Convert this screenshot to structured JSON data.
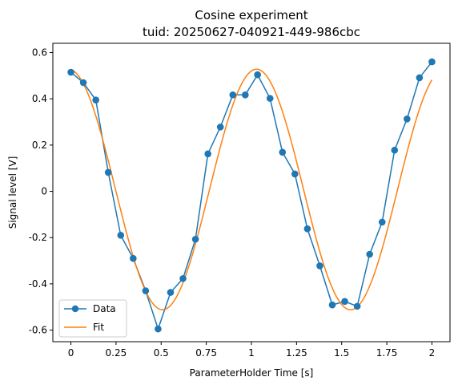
{
  "chart_data": {
    "type": "line",
    "title": "Cosine experiment",
    "subtitle": "tuid: 20250627-040921-449-986cbc",
    "xlabel": "ParameterHolder Time [s]",
    "ylabel": "Signal level [V]",
    "xlim": [
      -0.1,
      2.1
    ],
    "ylim": [
      -0.65,
      0.64
    ],
    "xticks": [
      0,
      0.25,
      0.5,
      0.75,
      1,
      1.25,
      1.5,
      1.75,
      2
    ],
    "xtick_labels": [
      "0",
      "0.25",
      "0.5",
      "0.75",
      "1",
      "1.25",
      "1.5",
      "1.75",
      "2"
    ],
    "yticks": [
      -0.6,
      -0.4,
      -0.2,
      0,
      0.2,
      0.4,
      0.6
    ],
    "ytick_labels": [
      "-0.6",
      "-0.4",
      "-0.2",
      "0",
      "0.2",
      "0.4",
      "0.6"
    ],
    "grid": false,
    "legend_position": "lower-left",
    "series": [
      {
        "name": "Data",
        "style": "line-markers",
        "color": "#1f77b4",
        "x": [
          0.0,
          0.069,
          0.138,
          0.207,
          0.276,
          0.345,
          0.414,
          0.483,
          0.552,
          0.621,
          0.69,
          0.759,
          0.828,
          0.897,
          0.966,
          1.034,
          1.103,
          1.172,
          1.241,
          1.31,
          1.379,
          1.448,
          1.517,
          1.586,
          1.655,
          1.724,
          1.793,
          1.862,
          1.931,
          2.0
        ],
        "y": [
          0.515,
          0.47,
          0.395,
          0.082,
          -0.19,
          -0.29,
          -0.43,
          -0.595,
          -0.437,
          -0.377,
          -0.207,
          0.162,
          0.278,
          0.417,
          0.417,
          0.504,
          0.402,
          0.169,
          0.075,
          -0.162,
          -0.322,
          -0.491,
          -0.476,
          -0.497,
          -0.272,
          -0.133,
          0.178,
          0.313,
          0.491,
          0.56
        ]
      },
      {
        "name": "Fit",
        "style": "line",
        "color": "#ff7f0e",
        "model": {
          "amplitude": 0.52,
          "frequency": 0.96,
          "phase": 0.08,
          "offset": 0.008,
          "x_start": 0.0,
          "x_end": 2.0
        }
      }
    ]
  }
}
